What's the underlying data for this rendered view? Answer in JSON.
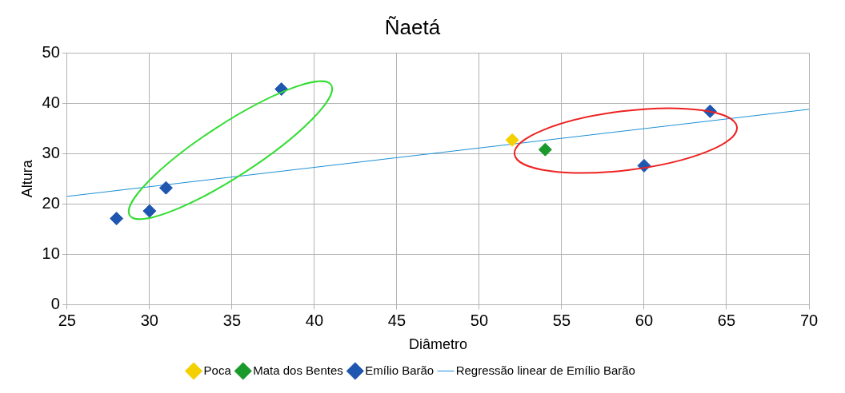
{
  "chart_data": {
    "type": "scatter",
    "title": "Ñaetá",
    "xlabel": "Diâmetro",
    "ylabel": "Altura",
    "xlim": [
      25,
      70
    ],
    "xticks": [
      25,
      30,
      35,
      40,
      45,
      50,
      55,
      60,
      65,
      70
    ],
    "ylim": [
      0,
      50
    ],
    "yticks": [
      0,
      10,
      20,
      30,
      40,
      50
    ],
    "grid": true,
    "legend": "bottom",
    "marker": "diamond",
    "series": [
      {
        "name": "Poca",
        "color": "#f5d000",
        "x": [
          52
        ],
        "values": [
          32.7
        ]
      },
      {
        "name": "Mata dos Bentes",
        "color": "#1a9a2a",
        "x": [
          54
        ],
        "values": [
          30.8
        ]
      },
      {
        "name": "Emílio Barão",
        "color": "#1f56b0",
        "x": [
          28,
          30,
          31,
          38,
          60,
          64
        ],
        "values": [
          17.1,
          18.6,
          23.2,
          42.8,
          27.6,
          38.4
        ]
      },
      {
        "name": "Regressão linear de Emílio Barão",
        "type": "line",
        "color": "#1c8fd6",
        "marker": "none",
        "line_style": "solid",
        "x": [
          25,
          70
        ],
        "values": [
          21.5,
          38.8
        ]
      }
    ]
  }
}
